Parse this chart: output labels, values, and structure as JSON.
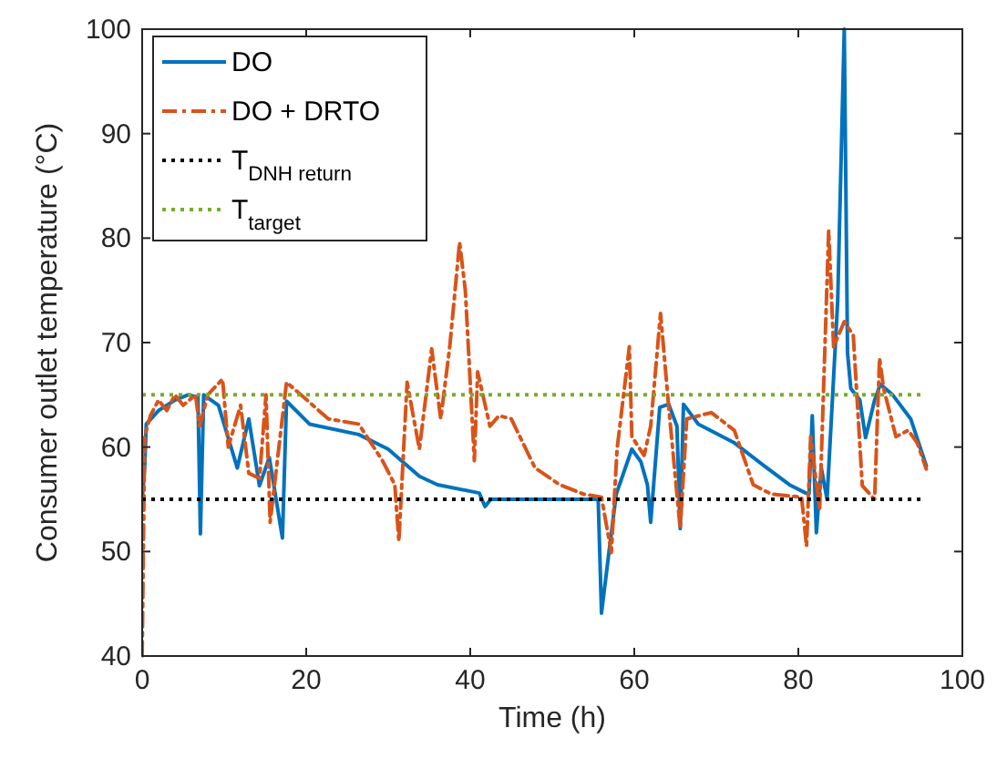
{
  "chart_data": {
    "type": "line",
    "xlabel": "Time (h)",
    "ylabel": "Consumer outlet temperature (°C)",
    "xlim": [
      0,
      100
    ],
    "ylim": [
      40,
      100
    ],
    "xticks": [
      0,
      20,
      40,
      60,
      80,
      100
    ],
    "yticks": [
      40,
      50,
      60,
      70,
      80,
      90,
      100
    ],
    "grid": false,
    "legend": "top left",
    "series": [
      {
        "name": "DO",
        "color": "#0072bd",
        "line_style": "solid",
        "x": [
          0,
          0.3,
          0.5,
          2,
          4,
          5.6,
          6.8,
          7.1,
          7.5,
          9.3,
          11.6,
          13,
          14.3,
          15.5,
          17.1,
          17.6,
          20.4,
          26.4,
          30,
          33.8,
          36,
          41.1,
          41.8,
          42.5,
          55.6,
          56,
          57,
          57.8,
          59.7,
          60.8,
          61.6,
          62,
          63.1,
          64.2,
          65.2,
          65.6,
          66,
          67.8,
          72.2,
          76,
          78.9,
          80.9,
          81.3,
          81.7,
          82.2,
          82.8,
          83.5,
          84.5,
          84.8,
          85.6,
          86,
          86.4,
          87.5,
          88.2,
          89.3,
          90,
          91.5,
          93.7,
          95.6
        ],
        "values": [
          55,
          58,
          62.2,
          63.5,
          64.5,
          65,
          64.8,
          51.7,
          65,
          64,
          58,
          62.7,
          56.3,
          59,
          51.3,
          64.4,
          62.2,
          61.2,
          59.8,
          57.2,
          56.4,
          55.6,
          54.3,
          55,
          55,
          44.1,
          50.5,
          55.5,
          59.8,
          58.6,
          56.4,
          52.8,
          63.8,
          64.1,
          62,
          52.2,
          64.1,
          62.2,
          60.4,
          58.1,
          56.4,
          55.6,
          55.5,
          63,
          51.8,
          58,
          55,
          69.6,
          74,
          100,
          69,
          65.6,
          64.5,
          60.9,
          64.5,
          66,
          65,
          62.7,
          58.2
        ]
      },
      {
        "name": "DO + DRTO",
        "color": "#d95319",
        "line_style": "dashdot",
        "x": [
          0,
          0.3,
          1,
          2,
          3,
          4,
          5,
          6.5,
          7,
          8,
          9.8,
          10.5,
          12,
          13,
          14.3,
          15.1,
          15.6,
          17.6,
          22.7,
          26.4,
          29.3,
          30.8,
          31.3,
          32.3,
          33.8,
          35.3,
          36.4,
          37.5,
          38.7,
          39.4,
          40.5,
          40.9,
          42.4,
          43.5,
          45,
          47.9,
          50.9,
          53.8,
          56,
          57.2,
          57.9,
          59.4,
          59.7,
          61.2,
          62,
          63.2,
          64.2,
          65.6,
          66.4,
          69.4,
          72.2,
          74.5,
          76.7,
          80.4,
          81,
          81.5,
          82.6,
          83.7,
          84.3,
          85.6,
          86.7,
          87.8,
          89.3,
          89.9,
          90.4,
          91.9,
          93.4,
          94.5,
          95.6
        ],
        "values": [
          40,
          61,
          63,
          64.5,
          63.5,
          65,
          64,
          65,
          62,
          65,
          66.5,
          60,
          64,
          57.5,
          57,
          65,
          52.8,
          66.2,
          62.7,
          62.2,
          58.7,
          56.4,
          51,
          66.2,
          59.8,
          69.4,
          62.7,
          69.6,
          79.6,
          75,
          58.7,
          67.2,
          62,
          63,
          62.7,
          58,
          56.4,
          55.5,
          55.2,
          49.9,
          59.8,
          69.6,
          61,
          59.2,
          62,
          72.8,
          63.8,
          52.2,
          62.7,
          63.3,
          61.6,
          56.4,
          55.5,
          55.2,
          50.5,
          61,
          54,
          80.7,
          69.6,
          72,
          70.7,
          56.3,
          55,
          68.5,
          65.6,
          61,
          61.6,
          60.4,
          57.9
        ]
      },
      {
        "name": "T$_{DNH return}$",
        "color": "#000000",
        "line_style": "dotted",
        "x": [
          0,
          95.5
        ],
        "values": [
          55,
          55
        ]
      },
      {
        "name": "T$_{target}$",
        "color": "#77ac30",
        "line_style": "dotted",
        "x": [
          0,
          95.5
        ],
        "values": [
          65,
          65
        ]
      }
    ]
  }
}
